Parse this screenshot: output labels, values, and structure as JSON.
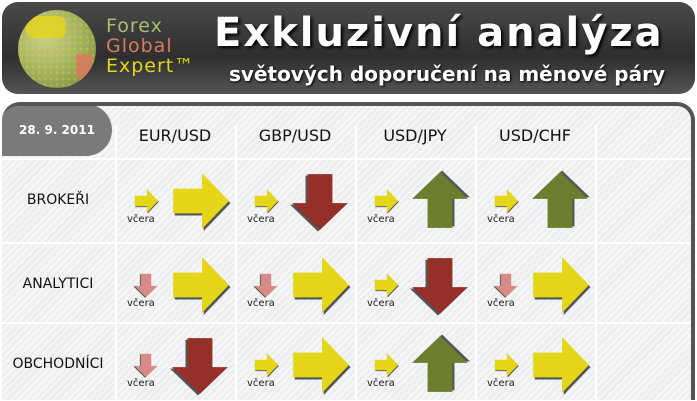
{
  "header": {
    "brand": [
      "Forex",
      "Global",
      "Expert™"
    ],
    "title": "Exkluzivní analýza",
    "subtitle": "světových doporučení na měnové páry"
  },
  "date": "28. 9. 2011",
  "columns": [
    "EUR/USD",
    "GBP/USD",
    "USD/JPY",
    "USD/CHF"
  ],
  "yesterday_label": "včera",
  "colors": {
    "right": "#e6d61a",
    "down": "#943028",
    "up": "#6b7e2e",
    "yesterday_down": "#d88a86",
    "yesterday_right": "#e6d61a"
  },
  "rows": [
    {
      "label": "BROKEŘI",
      "cells": [
        {
          "yesterday": "right",
          "today": "right"
        },
        {
          "yesterday": "right",
          "today": "down"
        },
        {
          "yesterday": "right",
          "today": "up"
        },
        {
          "yesterday": "right",
          "today": "up"
        }
      ]
    },
    {
      "label": "ANALYTICI",
      "cells": [
        {
          "yesterday": "down",
          "today": "right"
        },
        {
          "yesterday": "down",
          "today": "right"
        },
        {
          "yesterday": "right",
          "today": "down"
        },
        {
          "yesterday": "down",
          "today": "right"
        }
      ]
    },
    {
      "label": "OBCHODNÍCI",
      "cells": [
        {
          "yesterday": "down",
          "today": "down"
        },
        {
          "yesterday": "right",
          "today": "right"
        },
        {
          "yesterday": "right",
          "today": "up"
        },
        {
          "yesterday": "right",
          "today": "right"
        }
      ]
    }
  ]
}
